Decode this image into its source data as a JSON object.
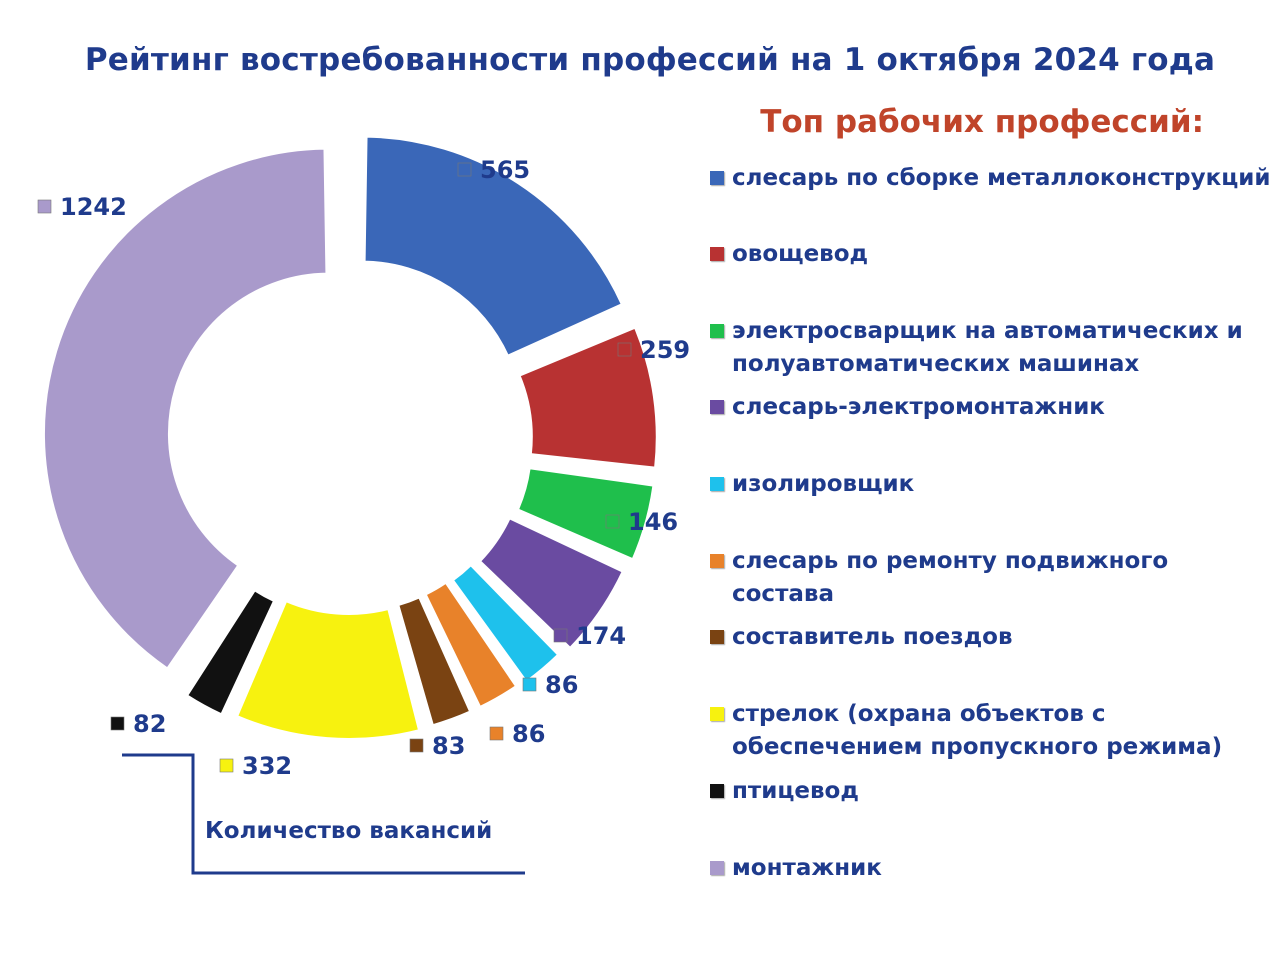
{
  "title": "Рейтинг востребованности профессий на 1 октября 2024 года",
  "subtitle": "Топ рабочих профессий:",
  "axis_caption": "Количество вакансий",
  "chart_data": {
    "type": "pie",
    "title": "Рейтинг востребованности профессий на 1 октября 2024 года",
    "subtitle": "Топ рабочих профессий:",
    "donut": true,
    "exploded": true,
    "legend_position": "right",
    "series": [
      {
        "name": "слесарь по сборке металлоконструкций",
        "value": 565,
        "color": "#3a67b8"
      },
      {
        "name": "овощевод",
        "value": 259,
        "color": "#b83232"
      },
      {
        "name": "электросварщик на автоматических и полуавтоматических машинах",
        "value": 146,
        "color": "#1fbf4c"
      },
      {
        "name": "слесарь-электромонтажник",
        "value": 174,
        "color": "#6a4ba1"
      },
      {
        "name": "изолировщик",
        "value": 86,
        "color": "#1ec1ec"
      },
      {
        "name": "слесарь по ремонту подвижного состава",
        "value": 86,
        "color": "#e8822a"
      },
      {
        "name": "составитель поездов",
        "value": 83,
        "color": "#7a4312"
      },
      {
        "name": "стрелок (охрана объектов с обеспечением пропускного режима)",
        "value": 332,
        "color": "#f7f20f"
      },
      {
        "name": "птицевод",
        "value": 82,
        "color": "#111111"
      },
      {
        "name": "монтажник",
        "value": 1242,
        "color": "#a99acb"
      }
    ]
  }
}
